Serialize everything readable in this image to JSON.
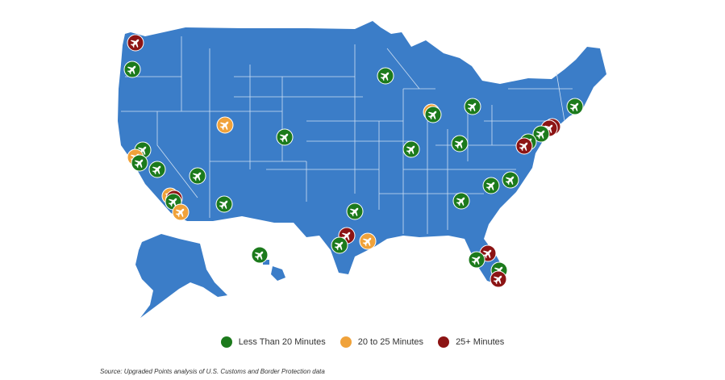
{
  "colors": {
    "land": "#3b7dc8",
    "border": "#cfe0f3",
    "less_than_20": "#1c7a1c",
    "twenty_to_25": "#f0a23a",
    "over_25": "#8c1414",
    "icon": "#ffffff"
  },
  "legend": {
    "items": [
      {
        "category": "less_than_20",
        "label": "Less Than 20 Minutes"
      },
      {
        "category": "twenty_to_25",
        "label": "20 to 25 Minutes"
      },
      {
        "category": "over_25",
        "label": "25+ Minutes"
      }
    ]
  },
  "source": "Source: Upgraded Points analysis of U.S. Customs and Border Protection data",
  "airports": [
    {
      "region": "Seattle, WA",
      "category": "over_25",
      "icon": "airplane-icon"
    },
    {
      "region": "Portland, OR",
      "category": "less_than_20",
      "icon": "airplane-icon"
    },
    {
      "region": "Sacramento, CA",
      "category": "less_than_20",
      "icon": "airplane-icon"
    },
    {
      "region": "San Francisco, CA",
      "category": "twenty_to_25",
      "icon": "airplane-icon"
    },
    {
      "region": "San Jose, CA",
      "category": "less_than_20",
      "icon": "airplane-icon"
    },
    {
      "region": "Fresno, CA",
      "category": "less_than_20",
      "icon": "airplane-icon"
    },
    {
      "region": "Las Vegas, NV",
      "category": "less_than_20",
      "icon": "airplane-icon"
    },
    {
      "region": "Los Angeles, CA",
      "category": "twenty_to_25",
      "icon": "airplane-icon"
    },
    {
      "region": "Ontario, CA",
      "category": "over_25",
      "icon": "airplane-icon"
    },
    {
      "region": "Orange County, CA",
      "category": "less_than_20",
      "icon": "airplane-icon"
    },
    {
      "region": "San Diego, CA",
      "category": "twenty_to_25",
      "icon": "airplane-icon"
    },
    {
      "region": "Phoenix, AZ",
      "category": "less_than_20",
      "icon": "airplane-icon"
    },
    {
      "region": "Salt Lake City, UT",
      "category": "twenty_to_25",
      "icon": "airplane-icon"
    },
    {
      "region": "Denver, CO",
      "category": "less_than_20",
      "icon": "airplane-icon"
    },
    {
      "region": "Minneapolis, MN",
      "category": "less_than_20",
      "icon": "airplane-icon"
    },
    {
      "region": "Chicago, IL",
      "category": "twenty_to_25",
      "icon": "airplane-icon"
    },
    {
      "region": "Chicago Midway, IL",
      "category": "less_than_20",
      "icon": "airplane-icon"
    },
    {
      "region": "Detroit, MI",
      "category": "less_than_20",
      "icon": "airplane-icon"
    },
    {
      "region": "St. Louis, MO",
      "category": "less_than_20",
      "icon": "airplane-icon"
    },
    {
      "region": "Cincinnati, OH",
      "category": "less_than_20",
      "icon": "airplane-icon"
    },
    {
      "region": "Boston, MA",
      "category": "less_than_20",
      "icon": "airplane-icon"
    },
    {
      "region": "New York JFK, NY",
      "category": "over_25",
      "icon": "airplane-icon"
    },
    {
      "region": "Newark, NJ",
      "category": "over_25",
      "icon": "airplane-icon"
    },
    {
      "region": "Philadelphia, PA",
      "category": "less_than_20",
      "icon": "airplane-icon"
    },
    {
      "region": "Baltimore, MD",
      "category": "less_than_20",
      "icon": "airplane-icon"
    },
    {
      "region": "Washington Dulles, VA",
      "category": "over_25",
      "icon": "airplane-icon"
    },
    {
      "region": "Raleigh, NC",
      "category": "less_than_20",
      "icon": "airplane-icon"
    },
    {
      "region": "Charlotte, NC",
      "category": "less_than_20",
      "icon": "airplane-icon"
    },
    {
      "region": "Atlanta, GA",
      "category": "less_than_20",
      "icon": "airplane-icon"
    },
    {
      "region": "Dallas, TX",
      "category": "less_than_20",
      "icon": "airplane-icon"
    },
    {
      "region": "Austin, TX",
      "category": "over_25",
      "icon": "airplane-icon"
    },
    {
      "region": "San Antonio, TX",
      "category": "less_than_20",
      "icon": "airplane-icon"
    },
    {
      "region": "Houston, TX",
      "category": "twenty_to_25",
      "icon": "airplane-icon"
    },
    {
      "region": "Orlando, FL",
      "category": "over_25",
      "icon": "airplane-icon"
    },
    {
      "region": "Tampa, FL",
      "category": "less_than_20",
      "icon": "airplane-icon"
    },
    {
      "region": "Fort Lauderdale, FL",
      "category": "less_than_20",
      "icon": "airplane-icon"
    },
    {
      "region": "Miami, FL",
      "category": "over_25",
      "icon": "airplane-icon"
    },
    {
      "region": "Honolulu, HI",
      "category": "less_than_20",
      "icon": "airplane-icon"
    }
  ]
}
